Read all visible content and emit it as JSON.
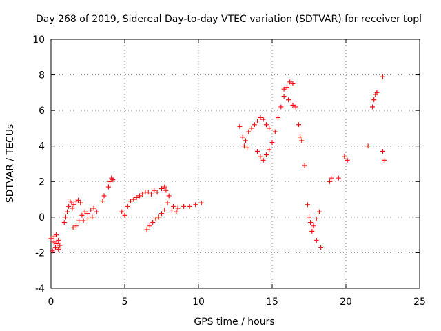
{
  "chart_data": {
    "type": "scatter",
    "title": "Day 268 of 2019, Sidereal Day-to-day VTEC variation (SDTVAR) for receiver topl",
    "xlabel": "GPS time / hours",
    "ylabel": "SDTVAR / TECUs",
    "xlim": [
      0,
      25
    ],
    "ylim": [
      -4,
      10
    ],
    "xticks": [
      "0",
      "5",
      "10",
      "15",
      "20",
      "25"
    ],
    "yticks": [
      "-4",
      "-2",
      "0",
      "2",
      "4",
      "6",
      "8",
      "10"
    ],
    "grid": true,
    "marker": "+",
    "color": "#ff0000",
    "series": [
      {
        "name": "SDTVAR",
        "x": [
          0.0,
          0.1,
          0.2,
          0.3,
          0.4,
          0.5,
          0.6,
          0.2,
          0.35,
          0.5,
          0.9,
          1.0,
          1.1,
          1.2,
          1.3,
          1.4,
          1.45,
          1.55,
          1.7,
          1.85,
          2.0,
          1.5,
          1.7,
          1.9,
          2.1,
          2.3,
          2.5,
          2.7,
          2.9,
          3.1,
          2.2,
          2.5,
          2.8,
          3.5,
          3.6,
          3.9,
          4.0,
          4.1,
          4.2,
          4.8,
          5.0,
          5.2,
          5.4,
          5.6,
          5.8,
          6.0,
          6.2,
          6.4,
          6.6,
          6.8,
          7.0,
          7.2,
          7.5,
          7.7,
          7.8,
          6.5,
          6.7,
          6.9,
          7.1,
          7.3,
          7.5,
          7.7,
          7.9,
          8.0,
          8.3,
          8.6,
          9.0,
          9.4,
          9.8,
          10.2,
          8.2,
          8.5,
          12.8,
          13.0,
          13.2,
          13.4,
          13.6,
          13.8,
          14.0,
          14.2,
          14.4,
          14.6,
          14.8,
          13.1,
          13.3,
          14.0,
          14.2,
          14.4,
          14.6,
          14.8,
          15.0,
          15.2,
          15.4,
          15.6,
          15.8,
          16.0,
          16.2,
          16.4,
          15.8,
          16.1,
          16.4,
          16.6,
          16.8,
          16.9,
          17.0,
          17.2,
          17.4,
          17.6,
          17.8,
          18.0,
          18.2,
          17.5,
          17.7,
          18.0,
          18.3,
          18.9,
          19.0,
          19.5,
          19.9,
          20.1,
          21.5,
          21.8,
          21.9,
          22.0,
          22.1,
          22.5,
          22.6,
          22.5
        ],
        "y": [
          -1.2,
          -1.9,
          -1.4,
          -1.7,
          -1.5,
          -1.3,
          -1.6,
          -1.1,
          -1.0,
          -1.8,
          -0.3,
          0.0,
          0.3,
          0.6,
          0.9,
          0.8,
          0.5,
          0.7,
          0.9,
          0.95,
          0.8,
          -0.6,
          -0.5,
          -0.2,
          0.1,
          0.3,
          0.2,
          0.4,
          0.5,
          0.3,
          -0.2,
          -0.1,
          0.0,
          0.9,
          1.2,
          1.7,
          2.0,
          2.2,
          2.1,
          0.3,
          0.1,
          0.6,
          0.9,
          1.0,
          1.1,
          1.2,
          1.3,
          1.4,
          1.4,
          1.3,
          1.5,
          1.4,
          1.6,
          1.7,
          1.5,
          -0.7,
          -0.5,
          -0.3,
          -0.1,
          0.0,
          0.2,
          0.4,
          0.8,
          1.2,
          0.6,
          0.5,
          0.6,
          0.6,
          0.7,
          0.8,
          0.4,
          0.3,
          5.1,
          4.5,
          4.3,
          4.8,
          5.0,
          5.2,
          5.4,
          5.6,
          5.5,
          5.2,
          5.0,
          4.0,
          3.9,
          3.7,
          3.4,
          3.2,
          3.5,
          3.8,
          4.2,
          4.8,
          5.6,
          6.2,
          6.8,
          7.3,
          7.6,
          7.5,
          7.2,
          6.6,
          6.3,
          6.2,
          5.2,
          4.5,
          4.3,
          2.9,
          0.7,
          -0.3,
          -0.5,
          -0.1,
          0.3,
          0.0,
          -0.8,
          -1.3,
          -1.7,
          2.0,
          2.2,
          2.2,
          3.4,
          3.2,
          4.0,
          6.2,
          6.6,
          6.9,
          7.0,
          3.7,
          3.2,
          7.9
        ]
      }
    ]
  }
}
